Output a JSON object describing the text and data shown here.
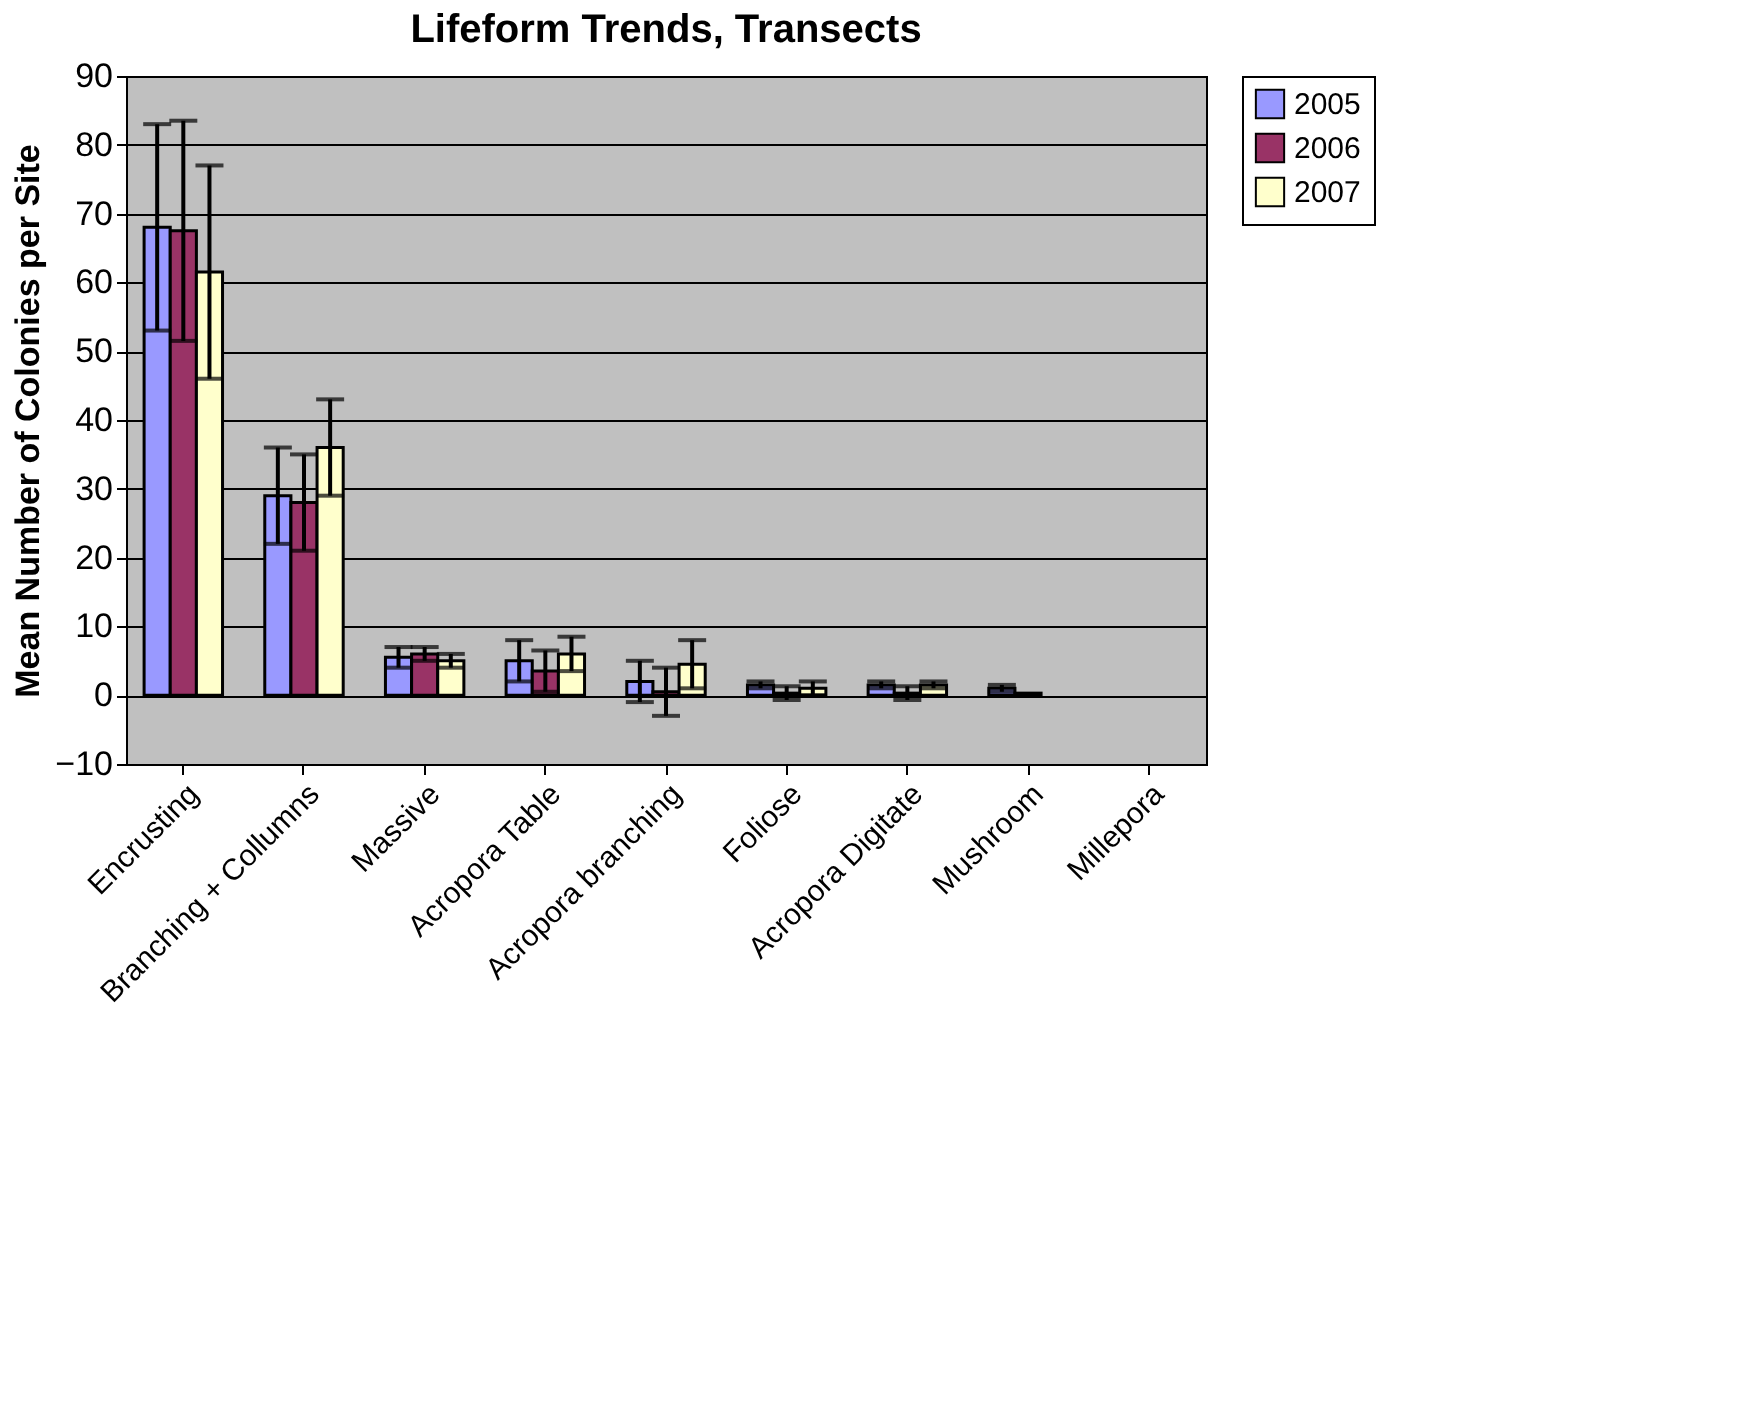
{
  "chart_data": {
    "type": "bar",
    "title": "Lifeform Trends, Transects",
    "ylabel": "Mean Number of Colonies per Site",
    "categories": [
      "Encrusting",
      "Branching + Collumns",
      "Massive",
      "Acropora Table",
      "Acropora branching",
      "Foliose",
      "Acropora Digitate",
      "Mushroom",
      "Millepora"
    ],
    "series": [
      {
        "name": "2005",
        "color": "#9999ff",
        "values": [
          68,
          29,
          5.5,
          5,
          2,
          1.5,
          1.5,
          1,
          null
        ],
        "errors": [
          15,
          7,
          1.5,
          3,
          3,
          0.5,
          0.5,
          0.5,
          null
        ]
      },
      {
        "name": "2006",
        "color": "#993366",
        "values": [
          67.5,
          28,
          6,
          3.5,
          0.5,
          0.3,
          0.3,
          0.3,
          null
        ],
        "errors": [
          16,
          7,
          1,
          3,
          3.5,
          1,
          1,
          null,
          null
        ]
      },
      {
        "name": "2007",
        "color": "#ffffcc",
        "values": [
          61.5,
          36,
          5,
          6,
          4.5,
          1,
          1.5,
          null,
          null
        ],
        "errors": [
          15.5,
          7,
          1,
          2.5,
          3.5,
          1,
          0.5,
          null,
          null
        ]
      }
    ],
    "ylim": [
      -10,
      90
    ],
    "yticks": [
      -10,
      0,
      10,
      20,
      30,
      40,
      50,
      60,
      70,
      80,
      90
    ],
    "grid": "y",
    "legend": "right"
  }
}
